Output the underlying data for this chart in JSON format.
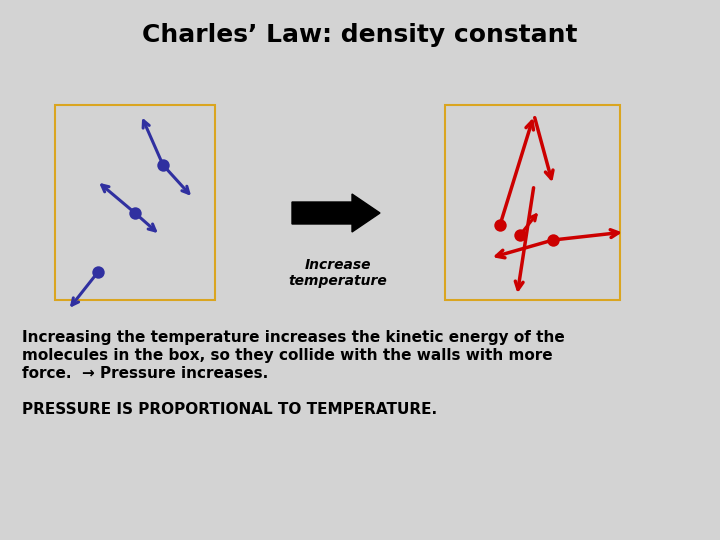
{
  "title": "Charles’ Law: density constant",
  "title_fontsize": 18,
  "bg_color": "#d3d3d3",
  "box_color": "#DAA520",
  "blue_color": "#3030a0",
  "red_color": "#cc0000",
  "text1_line1": "Increasing the temperature increases the kinetic energy of the",
  "text1_line2": "molecules in the box, so they collide with the walls with more",
  "text1_line3": "force.  → Pressure increases.",
  "text2": "PRESSURE IS PROPORTIONAL TO TEMPERATURE.",
  "label_center": "Increase\ntemperature",
  "label_fontsize": 10,
  "text1_fontsize": 11,
  "text2_fontsize": 11,
  "lw_molecule": 2.2,
  "dot_size": 80
}
